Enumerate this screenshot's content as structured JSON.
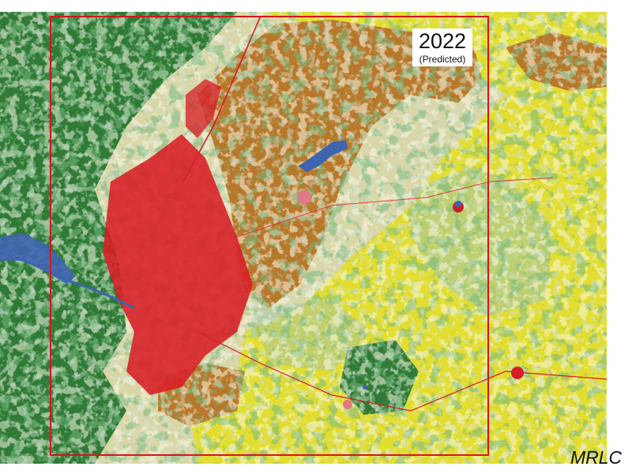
{
  "overlay": {
    "year": "2022",
    "year_note": "(Predicted)",
    "source": "MRLC"
  },
  "colors": {
    "forest": "#2f7a35",
    "shrub_grass": "#d9d6a8",
    "pasture": "#e2dd2f",
    "cropland": "#b8782a",
    "developed": "#d81c26",
    "water": "#3f64b0",
    "grassland_light": "#9fc2a4",
    "study_area_outline": "#d4161e",
    "background_right": "#ffffff"
  }
}
